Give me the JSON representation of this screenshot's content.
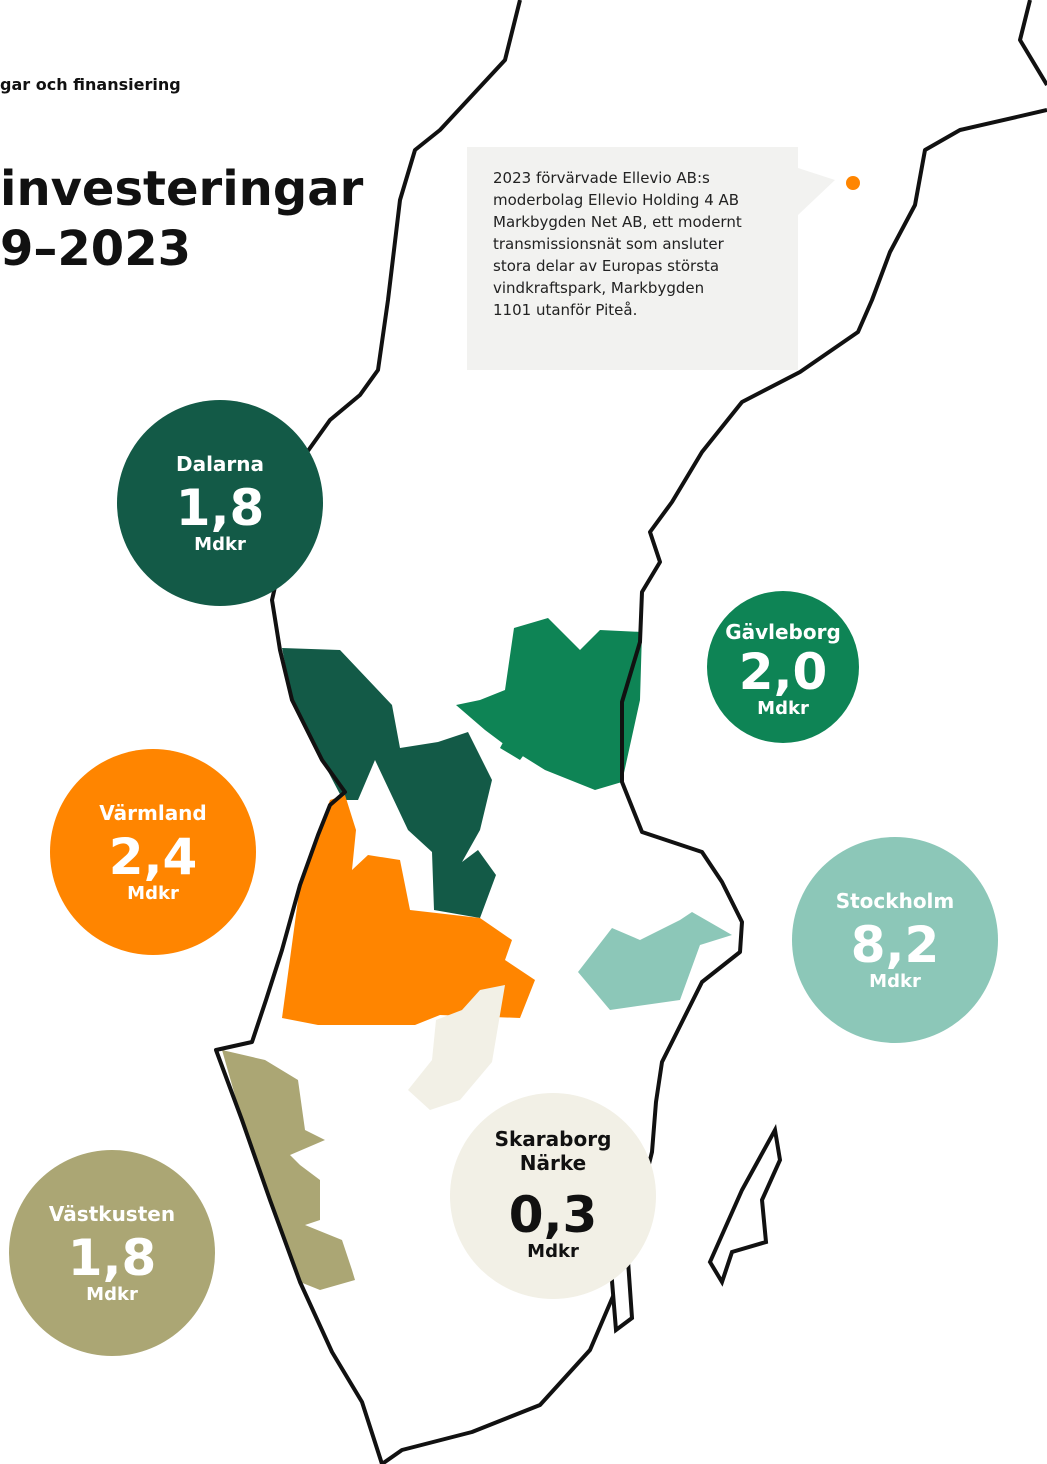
{
  "header": {
    "breadcrumb": "gar och finansiering",
    "title_lines": [
      "investeringar",
      "9–2023"
    ]
  },
  "callout": {
    "lines": [
      "2023 förvärvade Ellevio AB:s",
      "moderbolag Ellevio Holding 4 AB",
      "Markbygden Net AB, ett modernt",
      "transmissionsnät som ansluter",
      "stora delar av Europas största",
      "vindkraftspark, Markbygden",
      "1101 utanför Piteå."
    ]
  },
  "regions": [
    {
      "name": [
        "Dalarna"
      ],
      "value": "1,8",
      "unit": "Mdkr",
      "color": "#135a47"
    },
    {
      "name": [
        "Gävleborg"
      ],
      "value": "2,0",
      "unit": "Mdkr",
      "color": "#0e8455"
    },
    {
      "name": [
        "Värmland"
      ],
      "value": "2,4",
      "unit": "Mdkr",
      "color": "#ff8500"
    },
    {
      "name": [
        "Stockholm"
      ],
      "value": "8,2",
      "unit": "Mdkr",
      "color": "#8cc7b8"
    },
    {
      "name": [
        "Skaraborg",
        "Närke"
      ],
      "value": "0,3",
      "unit": "Mdkr",
      "color": "#f2f0e6"
    },
    {
      "name": [
        "Västkusten"
      ],
      "value": "1,8",
      "unit": "Mdkr",
      "color": "#aba674"
    }
  ]
}
